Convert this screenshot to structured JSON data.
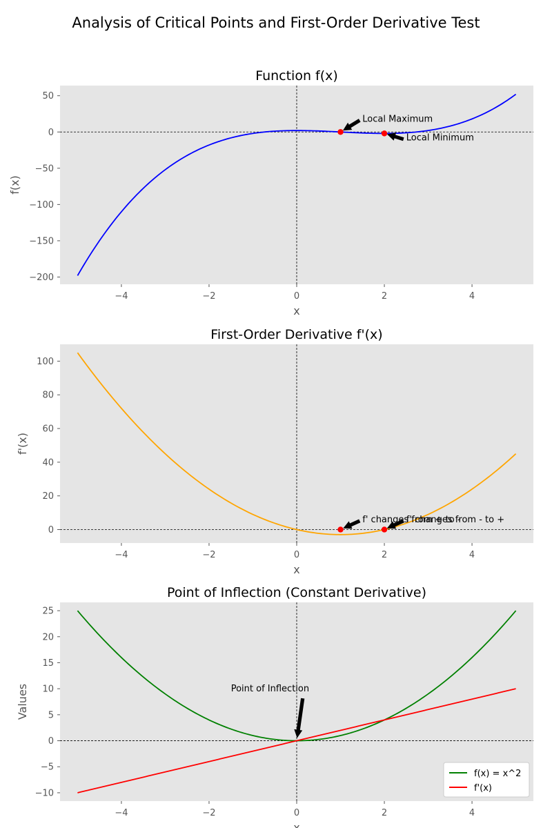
{
  "suptitle": "Analysis of Critical Points and First-Order Derivative Test",
  "colors": {
    "axes_bg": "#e5e5e5",
    "tick_text": "#555555",
    "f_line": "#0000ff",
    "fprime_line": "#ffa500",
    "parabola_line": "#008000",
    "linear_line": "#ff0000",
    "marker": "#ff0000",
    "arrow": "#000000"
  },
  "chart_data": [
    {
      "type": "line",
      "title": "Function f(x)",
      "xlabel": "x",
      "ylabel": "f(x)",
      "xlim": [
        -5.4,
        5.4
      ],
      "ylim": [
        -210,
        64
      ],
      "xticks": [
        -4,
        -2,
        0,
        2,
        4
      ],
      "xtick_labels": [
        "−4",
        "−2",
        "0",
        "2",
        "4"
      ],
      "yticks": [
        -200,
        -150,
        -100,
        -50,
        0,
        50
      ],
      "ytick_labels": [
        "−200",
        "−150",
        "−100",
        "−50",
        "0",
        "50"
      ],
      "grid": false,
      "reference_lines": {
        "horizontal": 0,
        "vertical": 0
      },
      "series": [
        {
          "function": "x^3 - 3x^2 + 2",
          "x_range": [
            -5,
            5
          ],
          "color": "#0000ff"
        }
      ],
      "markers": [
        {
          "x": 1,
          "y": 0
        },
        {
          "x": 2,
          "y": -2
        }
      ],
      "annotations": [
        {
          "text": "Local Maximum",
          "xy": [
            1,
            0
          ],
          "xytext": [
            1.5,
            18
          ]
        },
        {
          "text": "Local Minimum",
          "xy": [
            2,
            -2
          ],
          "xytext": [
            2.5,
            -8
          ]
        }
      ]
    },
    {
      "type": "line",
      "title": "First-Order Derivative f'(x)",
      "xlabel": "x",
      "ylabel": "f'(x)",
      "xlim": [
        -5.4,
        5.4
      ],
      "ylim": [
        -8,
        110
      ],
      "xticks": [
        -4,
        -2,
        0,
        2,
        4
      ],
      "xtick_labels": [
        "−4",
        "−2",
        "0",
        "2",
        "4"
      ],
      "yticks": [
        0,
        20,
        40,
        60,
        80,
        100
      ],
      "ytick_labels": [
        "0",
        "20",
        "40",
        "60",
        "80",
        "100"
      ],
      "grid": false,
      "reference_lines": {
        "horizontal": 0,
        "vertical": 0
      },
      "series": [
        {
          "function": "3x^2 - 6x",
          "x_range": [
            -5,
            5
          ],
          "color": "#ffa500"
        }
      ],
      "markers": [
        {
          "x": 1,
          "y": 0
        },
        {
          "x": 2,
          "y": 0
        }
      ],
      "annotations": [
        {
          "text": "f' changes from + to -",
          "xy": [
            1,
            0
          ],
          "xytext": [
            1.5,
            6
          ]
        },
        {
          "text": "f' changes from - to +",
          "xy": [
            2,
            0
          ],
          "xytext": [
            2.5,
            6
          ]
        }
      ]
    },
    {
      "type": "line",
      "title": "Point of Inflection (Constant Derivative)",
      "xlabel": "x",
      "ylabel": "Values",
      "xlim": [
        -5.4,
        5.4
      ],
      "ylim": [
        -11.6,
        26.6
      ],
      "xticks": [
        -4,
        -2,
        0,
        2,
        4
      ],
      "xtick_labels": [
        "−4",
        "−2",
        "0",
        "2",
        "4"
      ],
      "yticks": [
        -10,
        -5,
        0,
        5,
        10,
        15,
        20,
        25
      ],
      "ytick_labels": [
        "−10",
        "−5",
        "0",
        "5",
        "10",
        "15",
        "20",
        "25"
      ],
      "grid": false,
      "legend_position": "lower-right",
      "reference_lines": {
        "horizontal": 0,
        "vertical": 0
      },
      "series": [
        {
          "name": "f(x) = x^2",
          "function": "x^2",
          "x_range": [
            -5,
            5
          ],
          "color": "#008000"
        },
        {
          "name": "f'(x)",
          "function": "2x",
          "x_range": [
            -5,
            5
          ],
          "color": "#ff0000"
        }
      ],
      "annotations": [
        {
          "text": "Point of Inflection",
          "xy": [
            0,
            0
          ],
          "xytext": [
            -1.5,
            10
          ]
        }
      ]
    }
  ]
}
